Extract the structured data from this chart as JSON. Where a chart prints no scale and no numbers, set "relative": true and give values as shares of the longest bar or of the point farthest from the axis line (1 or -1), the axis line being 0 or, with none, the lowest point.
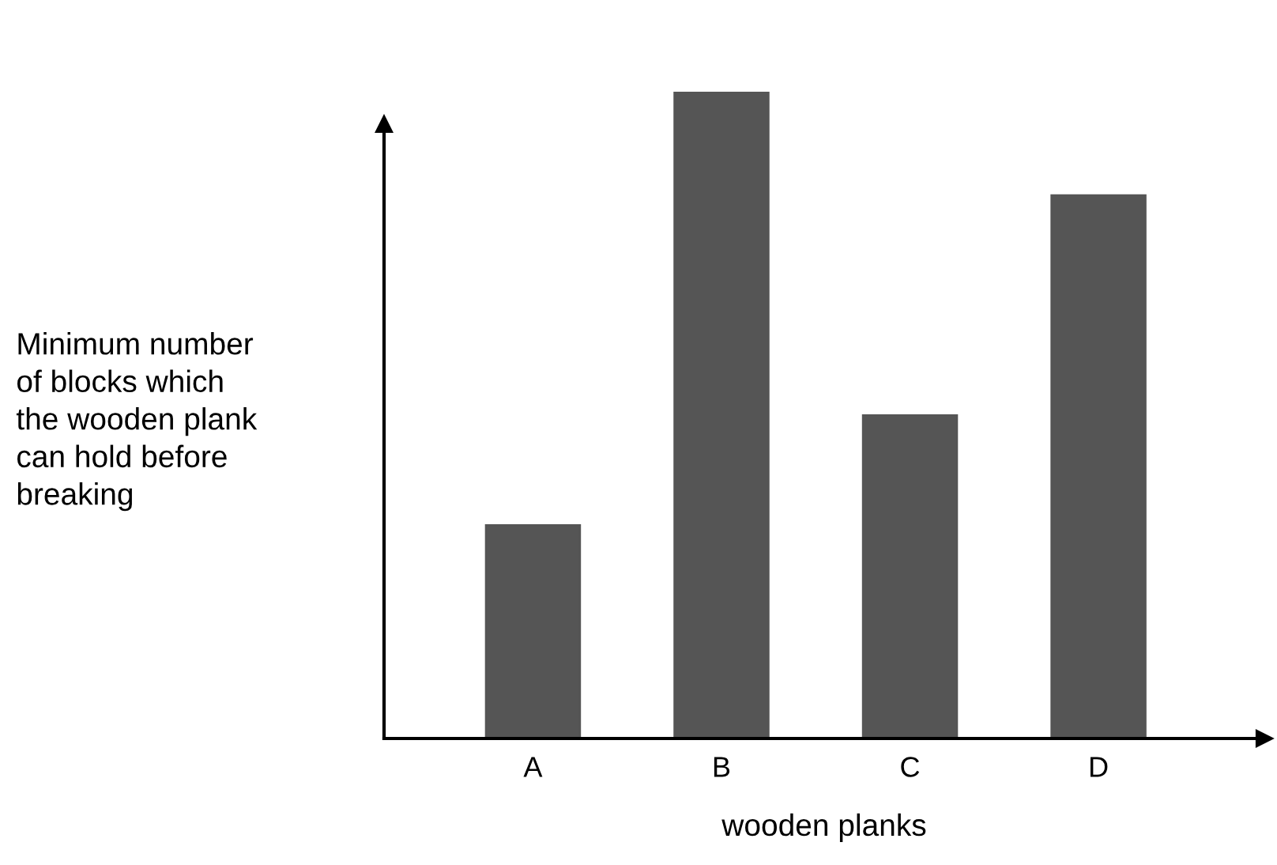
{
  "chart_data": {
    "type": "bar",
    "relative": true,
    "categories": [
      "A",
      "B",
      "C",
      "D"
    ],
    "values": [
      0.33,
      1,
      0.5,
      0.84
    ],
    "color": "#555555",
    "xlabel": "wooden planks",
    "ylabel": "Minimum number\nof blocks which\nthe wooden plank\ncan hold before\nbreaking",
    "grid": false,
    "legend": false
  }
}
